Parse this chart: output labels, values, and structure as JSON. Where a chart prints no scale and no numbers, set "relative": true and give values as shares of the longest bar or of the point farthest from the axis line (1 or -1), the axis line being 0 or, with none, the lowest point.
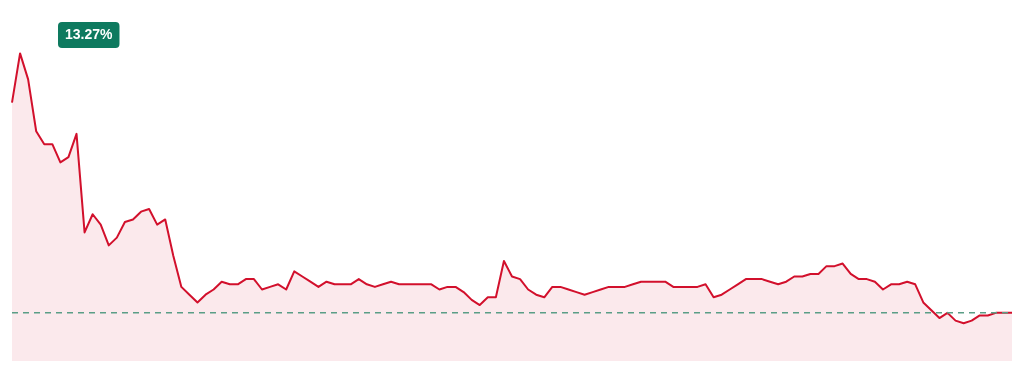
{
  "chart_data": {
    "type": "area",
    "relative": true,
    "categories": [
      null,
      null,
      null,
      null,
      null,
      null,
      null,
      null,
      null,
      null,
      null,
      null,
      null,
      null,
      null,
      null,
      null,
      null,
      null,
      null,
      null,
      null,
      null,
      null,
      null,
      null,
      null,
      null,
      null,
      null,
      null,
      null,
      null,
      null,
      null,
      null,
      null,
      null,
      null,
      null,
      null,
      null,
      null,
      null,
      null,
      null,
      null,
      null,
      null,
      null,
      null,
      null,
      null,
      null,
      null,
      null,
      null,
      null,
      null,
      null,
      null,
      null,
      null,
      null,
      null,
      null,
      null,
      null,
      null,
      null,
      null,
      null,
      null,
      null,
      null,
      null,
      null,
      null,
      null,
      null,
      null,
      null,
      null,
      null,
      null,
      null,
      null,
      null,
      null,
      null,
      null,
      null,
      null,
      null,
      null,
      null,
      null,
      null,
      null,
      null,
      null,
      null,
      null,
      null,
      null,
      null,
      null,
      null,
      null,
      null,
      null,
      null,
      null,
      null,
      null,
      null,
      null,
      null,
      null,
      null,
      null,
      null,
      null,
      null,
      null
    ],
    "series": [
      {
        "color": "#d2102c",
        "values": [
          0.81,
          1,
          0.9,
          0.7,
          0.65,
          0.65,
          0.58,
          0.6,
          0.69,
          0.31,
          0.38,
          0.34,
          0.26,
          0.29,
          0.35,
          0.36,
          0.39,
          0.4,
          0.34,
          0.36,
          0.22,
          0.1,
          0.07,
          0.04,
          0.07,
          0.09,
          0.12,
          0.11,
          0.11,
          0.13,
          0.13,
          0.09,
          0.1,
          0.11,
          0.09,
          0.16,
          0.14,
          0.12,
          0.1,
          0.12,
          0.11,
          0.11,
          0.11,
          0.13,
          0.11,
          0.1,
          0.11,
          0.12,
          0.11,
          0.11,
          0.11,
          0.11,
          0.11,
          0.09,
          0.1,
          0.1,
          0.08,
          0.05,
          0.03,
          0.06,
          0.06,
          0.2,
          0.14,
          0.13,
          0.09,
          0.07,
          0.06,
          0.1,
          0.1,
          0.09,
          0.08,
          0.07,
          0.08,
          0.09,
          0.1,
          0.1,
          0.1,
          0.11,
          0.12,
          0.12,
          0.12,
          0.12,
          0.1,
          0.1,
          0.1,
          0.1,
          0.11,
          0.06,
          0.07,
          0.09,
          0.11,
          0.13,
          0.13,
          0.13,
          0.12,
          0.11,
          0.12,
          0.14,
          0.14,
          0.15,
          0.15,
          0.18,
          0.18,
          0.19,
          0.15,
          0.13,
          0.13,
          0.12,
          0.09,
          0.11,
          0.11,
          0.12,
          0.11,
          0.04,
          0.01,
          -0.02,
          0,
          -0.03,
          -0.04,
          -0.03,
          -0.01,
          -0.01,
          0,
          0,
          0
        ]
      }
    ],
    "ref_lines": [
      {
        "axis": "y",
        "value": 0,
        "color": "#5a9e86",
        "line_style": "dashed"
      }
    ],
    "annotations": [
      "13.27%"
    ],
    "marker": "none",
    "line_style": "solid",
    "legend": false
  }
}
